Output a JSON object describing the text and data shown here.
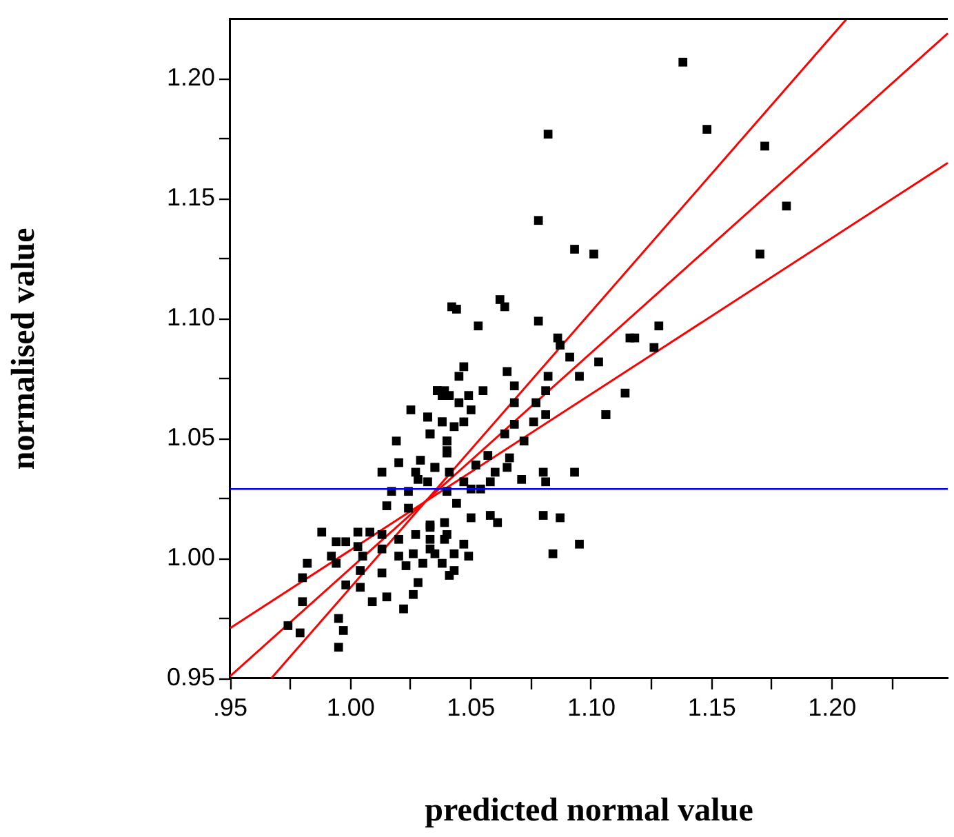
{
  "chart_data": {
    "type": "scatter",
    "xlabel": "predicted normal value",
    "ylabel": "normalised value",
    "xlim": [
      0.95,
      1.248
    ],
    "ylim": [
      0.95,
      1.225
    ],
    "xticks": [
      {
        "value": 0.95,
        "label": ".95"
      },
      {
        "value": 0.975,
        "label": null
      },
      {
        "value": 1.0,
        "label": "1.00"
      },
      {
        "value": 1.025,
        "label": null
      },
      {
        "value": 1.05,
        "label": "1.05"
      },
      {
        "value": 1.075,
        "label": null
      },
      {
        "value": 1.1,
        "label": "1.10"
      },
      {
        "value": 1.125,
        "label": null
      },
      {
        "value": 1.15,
        "label": "1.15"
      },
      {
        "value": 1.175,
        "label": null
      },
      {
        "value": 1.2,
        "label": "1.20"
      },
      {
        "value": 1.225,
        "label": null
      }
    ],
    "yticks": [
      {
        "value": 0.95,
        "label": "0.95"
      },
      {
        "value": 0.975,
        "label": null
      },
      {
        "value": 1.0,
        "label": "1.00"
      },
      {
        "value": 1.025,
        "label": null
      },
      {
        "value": 1.05,
        "label": "1.05"
      },
      {
        "value": 1.075,
        "label": null
      },
      {
        "value": 1.1,
        "label": "1.10"
      },
      {
        "value": 1.125,
        "label": null
      },
      {
        "value": 1.15,
        "label": "1.15"
      },
      {
        "value": 1.175,
        "label": null
      },
      {
        "value": 1.2,
        "label": "1.20"
      }
    ],
    "grid": false,
    "legend": false,
    "ref_lines": [
      {
        "axis": "y",
        "value": 1.029,
        "color": "#0000ff"
      }
    ],
    "series": [
      {
        "marker": "square",
        "color": "#000000",
        "x": [
          1.138,
          1.148,
          1.172,
          1.181,
          1.17,
          1.118,
          1.128,
          1.126,
          1.114,
          1.106,
          1.101,
          1.093,
          1.082,
          1.078,
          1.042,
          1.036,
          1.038,
          1.025,
          1.032,
          1.038,
          1.033,
          1.019,
          1.04,
          1.04,
          1.029,
          1.02,
          1.013,
          1.027,
          1.035,
          1.028,
          1.017,
          1.024,
          1.015,
          1.024,
          0.988,
          1.003,
          1.008,
          0.994,
          0.998,
          1.003,
          1.013,
          0.992,
          0.982,
          0.994,
          1.005,
          1.013,
          1.02,
          1.027,
          1.033,
          1.02,
          1.026,
          1.033,
          1.039,
          1.023,
          1.03,
          1.004,
          1.013,
          0.98,
          0.998,
          1.004,
          1.028,
          1.041,
          0.98,
          1.009,
          1.015,
          1.026,
          1.022,
          0.974,
          0.979,
          0.995,
          0.997,
          0.995,
          1.044,
          1.062,
          1.064,
          1.053,
          1.078,
          1.086,
          1.087,
          1.091,
          1.103,
          1.116,
          1.047,
          1.045,
          1.065,
          1.082,
          1.095,
          1.068,
          1.036,
          1.039,
          1.041,
          1.049,
          1.055,
          1.081,
          1.045,
          1.068,
          1.077,
          1.05,
          1.032,
          1.038,
          1.043,
          1.047,
          1.081,
          1.076,
          1.106,
          1.068,
          1.033,
          1.064,
          1.04,
          1.072,
          1.04,
          1.057,
          1.066,
          1.052,
          1.035,
          1.041,
          1.06,
          1.065,
          1.08,
          1.093,
          1.047,
          1.058,
          1.071,
          1.081,
          1.032,
          1.04,
          1.05,
          1.054,
          1.044,
          1.05,
          1.058,
          1.061,
          1.08,
          1.087,
          1.039,
          1.033,
          1.04,
          1.033,
          1.047,
          1.035,
          1.043,
          1.049,
          1.038,
          1.043,
          1.084,
          1.095
        ],
        "values": [
          1.207,
          1.179,
          1.172,
          1.147,
          1.127,
          1.092,
          1.097,
          1.088,
          1.069,
          1.06,
          1.127,
          1.129,
          1.177,
          1.141,
          1.105,
          1.07,
          1.068,
          1.062,
          1.059,
          1.057,
          1.052,
          1.049,
          1.049,
          1.045,
          1.041,
          1.04,
          1.036,
          1.036,
          1.038,
          1.033,
          1.028,
          1.028,
          1.022,
          1.021,
          1.011,
          1.011,
          1.011,
          1.007,
          1.007,
          1.005,
          1.01,
          1.001,
          0.998,
          0.998,
          1.001,
          1.004,
          1.008,
          1.01,
          1.013,
          1.001,
          1.002,
          1.004,
          1.008,
          0.997,
          0.998,
          0.995,
          0.994,
          0.992,
          0.989,
          0.988,
          0.99,
          0.993,
          0.982,
          0.982,
          0.984,
          0.985,
          0.979,
          0.972,
          0.969,
          0.975,
          0.97,
          0.963,
          1.104,
          1.108,
          1.105,
          1.097,
          1.099,
          1.092,
          1.089,
          1.084,
          1.082,
          1.092,
          1.08,
          1.076,
          1.078,
          1.076,
          1.076,
          1.072,
          1.07,
          1.07,
          1.068,
          1.068,
          1.07,
          1.07,
          1.065,
          1.065,
          1.065,
          1.062,
          1.059,
          1.057,
          1.055,
          1.057,
          1.06,
          1.057,
          1.06,
          1.056,
          1.052,
          1.052,
          1.049,
          1.049,
          1.044,
          1.043,
          1.042,
          1.039,
          1.038,
          1.036,
          1.036,
          1.038,
          1.036,
          1.036,
          1.032,
          1.032,
          1.033,
          1.032,
          1.032,
          1.028,
          1.029,
          1.029,
          1.023,
          1.017,
          1.018,
          1.015,
          1.018,
          1.017,
          1.015,
          1.014,
          1.01,
          1.008,
          1.006,
          1.002,
          1.002,
          1.001,
          0.998,
          0.995,
          1.002,
          1.006
        ]
      },
      {
        "type": "line",
        "color": "#ff0000",
        "x": [
          0.95,
          1.248
        ],
        "values": [
          0.971,
          1.165
        ]
      },
      {
        "type": "line",
        "color": "#ff0000",
        "x": [
          0.95,
          1.248
        ],
        "values": [
          0.951,
          1.219
        ]
      },
      {
        "type": "line",
        "color": "#ff0000",
        "x": [
          0.967,
          1.206
        ],
        "values": [
          0.95,
          1.225
        ]
      }
    ]
  }
}
